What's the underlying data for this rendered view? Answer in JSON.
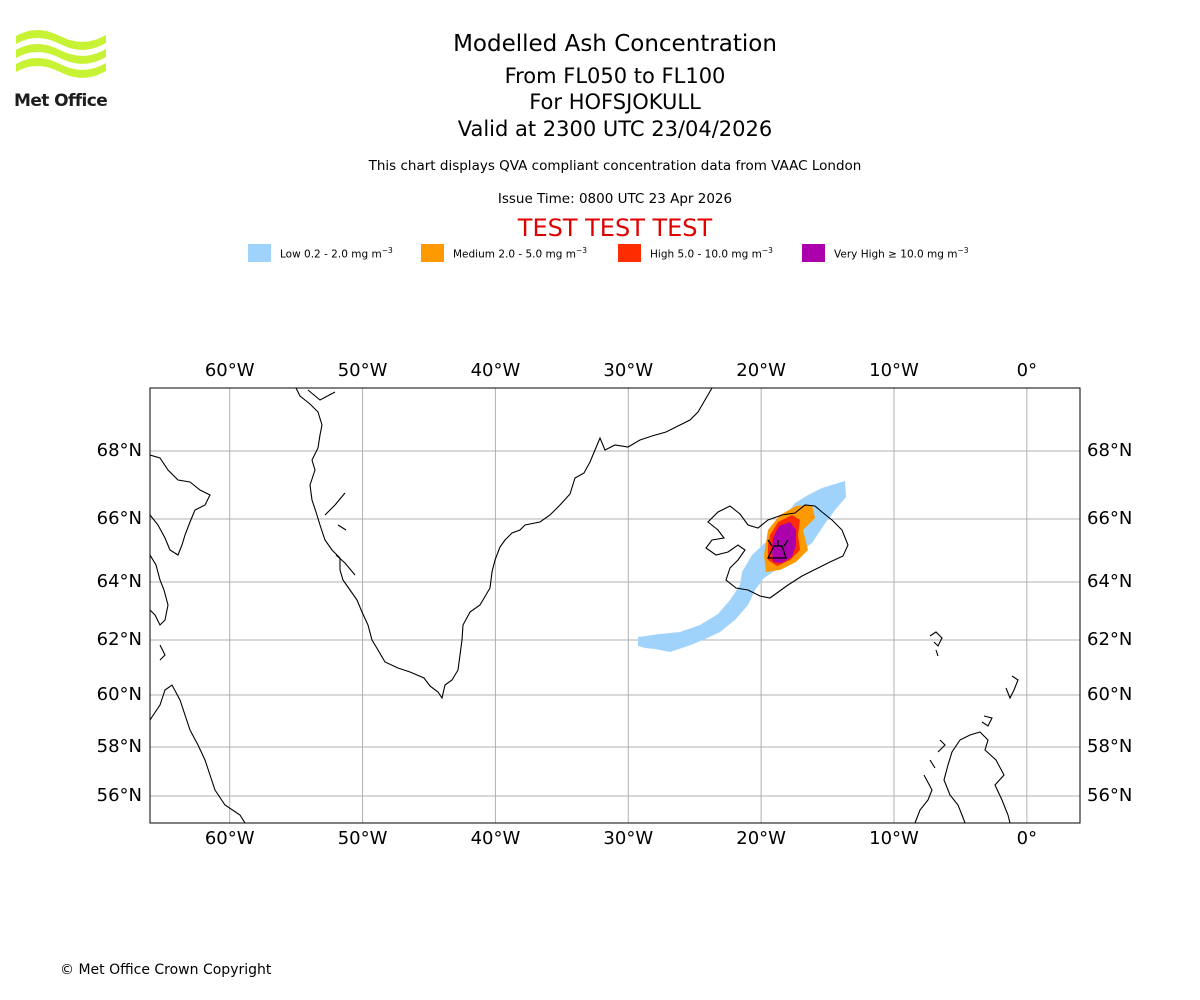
{
  "header": {
    "brand": "Met Office",
    "title": "Modelled Ash Concentration",
    "flight_levels": "From FL050 to FL100",
    "volcano": "For HOFSJOKULL",
    "valid_time": "Valid at 2300 UTC 23/04/2026",
    "compliance_note": "This chart displays QVA compliant concentration data from VAAC London",
    "issue_time": "Issue Time: 0800 UTC 23 Apr 2026",
    "test_banner": "TEST TEST TEST"
  },
  "legend": [
    {
      "name": "Low",
      "label": "Low 0.2 - 2.0 mg m",
      "exp": "−3",
      "color": "#a0d3fb"
    },
    {
      "name": "Medium",
      "label": "Medium 2.0 - 5.0 mg m",
      "exp": "−3",
      "color": "#fd9a01"
    },
    {
      "name": "High",
      "label": "High 5.0 - 10.0 mg m",
      "exp": "−3",
      "color": "#fe2c01"
    },
    {
      "name": "Very High",
      "label": "Very High  ≥  10.0 mg m",
      "exp": "−3",
      "color": "#ad00ad"
    }
  ],
  "map": {
    "lon_range": [
      -66,
      4
    ],
    "lat_range": [
      55,
      70
    ],
    "lon_ticks": [
      {
        "value": -60,
        "label": "60°W"
      },
      {
        "value": -50,
        "label": "50°W"
      },
      {
        "value": -40,
        "label": "40°W"
      },
      {
        "value": -30,
        "label": "30°W"
      },
      {
        "value": -20,
        "label": "20°W"
      },
      {
        "value": -10,
        "label": "10°W"
      },
      {
        "value": 0,
        "label": "0°"
      }
    ],
    "lat_ticks": [
      {
        "value": 68,
        "label": "68°N"
      },
      {
        "value": 66,
        "label": "66°N"
      },
      {
        "value": 64,
        "label": "64°N"
      },
      {
        "value": 62,
        "label": "62°N"
      },
      {
        "value": 60,
        "label": "60°N"
      },
      {
        "value": 58,
        "label": "58°N"
      },
      {
        "value": 56,
        "label": "56°N"
      }
    ],
    "gridline_color": "#b0b0b0"
  },
  "footer": {
    "copyright": "© Met Office Crown Copyright"
  }
}
